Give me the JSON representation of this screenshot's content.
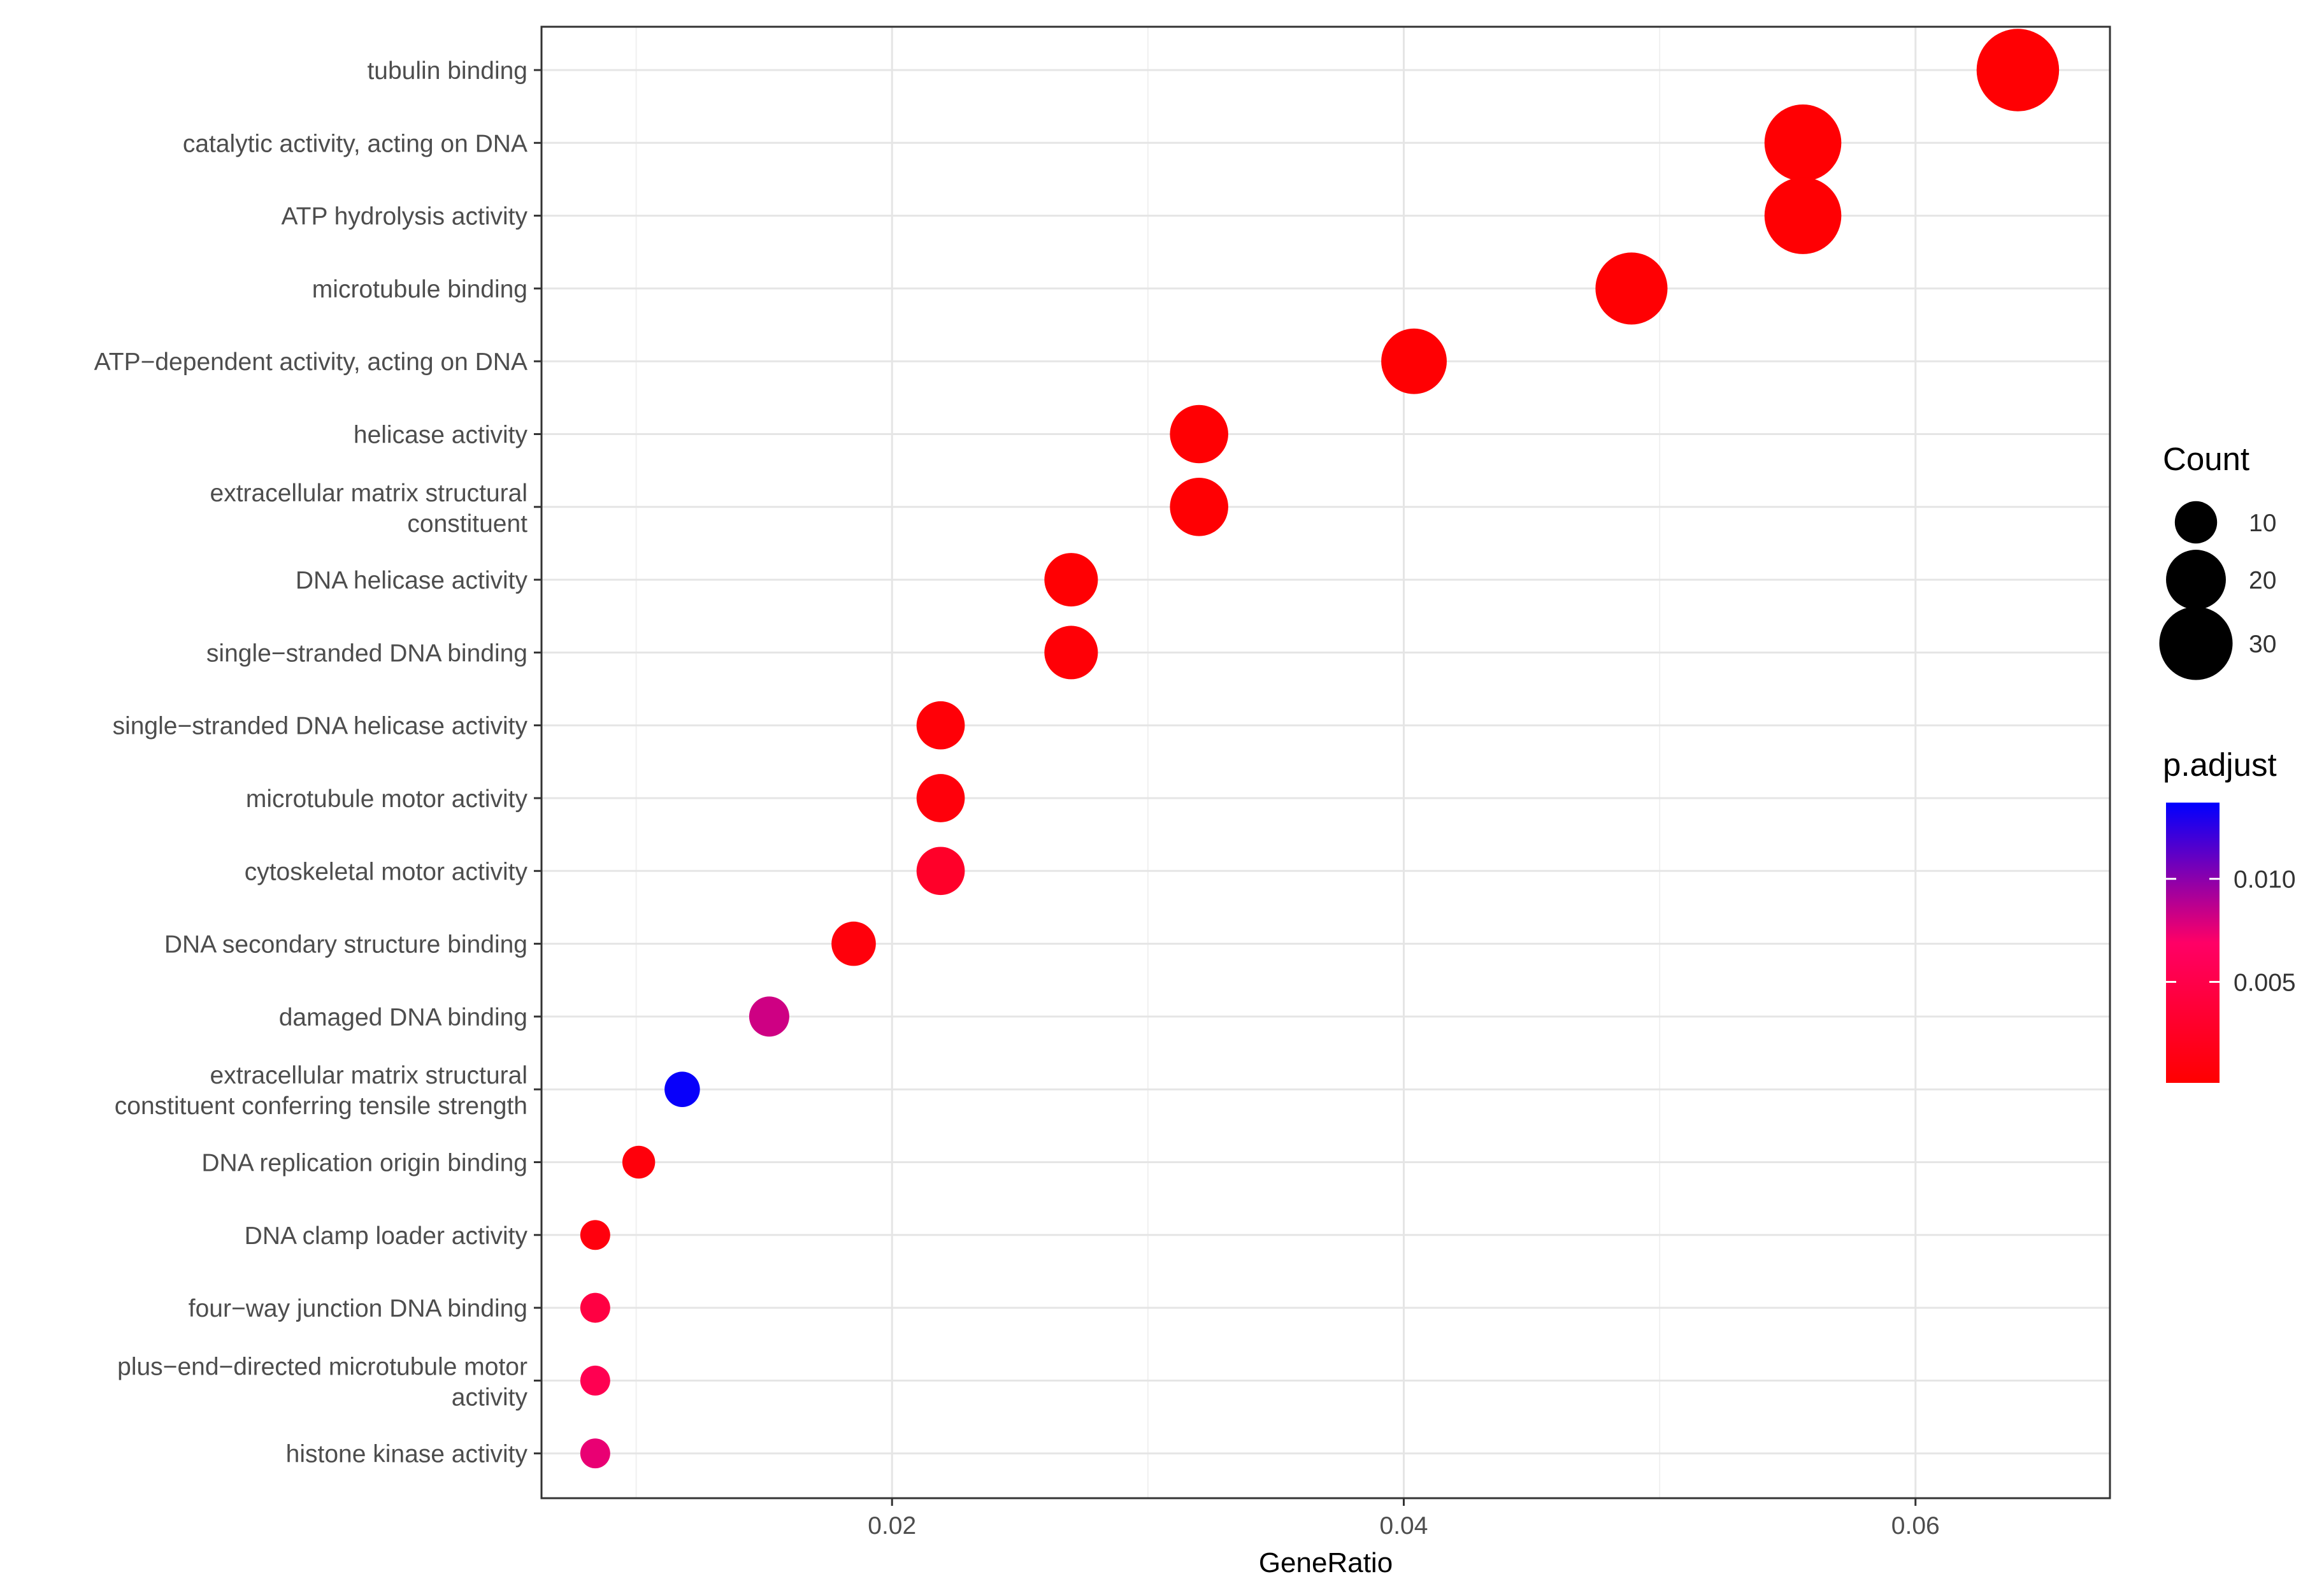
{
  "chart_data": {
    "type": "scatter",
    "title": "",
    "xlabel": "GeneRatio",
    "ylabel": "",
    "xlim": [
      0.0063,
      0.0676
    ],
    "x_ticks": [
      0.02,
      0.04,
      0.06
    ],
    "x_tick_labels": [
      "0.02",
      "0.04",
      "0.06"
    ],
    "grid": true,
    "points": [
      {
        "term": "tubulin binding",
        "x": 0.064,
        "count": 38,
        "p_adjust": 0.0003
      },
      {
        "term": "catalytic activity, acting on DNA",
        "x": 0.0556,
        "count": 33,
        "p_adjust": 0.0003
      },
      {
        "term": "ATP hydrolysis activity",
        "x": 0.0556,
        "count": 33,
        "p_adjust": 0.0003
      },
      {
        "term": "microtubule binding",
        "x": 0.0489,
        "count": 29,
        "p_adjust": 0.0003
      },
      {
        "term": "ATP−dependent activity, acting on DNA",
        "x": 0.0404,
        "count": 24,
        "p_adjust": 0.0003
      },
      {
        "term": "helicase activity",
        "x": 0.032,
        "count": 19,
        "p_adjust": 0.0003
      },
      {
        "term": "extracellular matrix structural constituent",
        "lines": [
          "extracellular matrix structural",
          "constituent"
        ],
        "x": 0.032,
        "count": 19,
        "p_adjust": 0.0003
      },
      {
        "term": "DNA helicase activity",
        "x": 0.027,
        "count": 16,
        "p_adjust": 0.0003
      },
      {
        "term": "single−stranded DNA binding",
        "x": 0.027,
        "count": 16,
        "p_adjust": 0.0005
      },
      {
        "term": "single−stranded DNA helicase activity",
        "x": 0.0219,
        "count": 13,
        "p_adjust": 0.0006
      },
      {
        "term": "microtubule motor activity",
        "x": 0.0219,
        "count": 13,
        "p_adjust": 0.0008
      },
      {
        "term": "cytoskeletal motor activity",
        "x": 0.0219,
        "count": 13,
        "p_adjust": 0.0028
      },
      {
        "term": "DNA secondary structure binding",
        "x": 0.0185,
        "count": 11,
        "p_adjust": 0.0008
      },
      {
        "term": "damaged DNA binding",
        "x": 0.0152,
        "count": 9,
        "p_adjust": 0.0082
      },
      {
        "term": "extracellular matrix structural constituent conferring tensile strength",
        "lines": [
          "extracellular matrix structural",
          "constituent conferring tensile strength"
        ],
        "x": 0.0118,
        "count": 7,
        "p_adjust": 0.0135
      },
      {
        "term": "DNA replication origin binding",
        "x": 0.0101,
        "count": 6,
        "p_adjust": 0.0008
      },
      {
        "term": "DNA clamp loader activity",
        "x": 0.0084,
        "count": 5,
        "p_adjust": 0.001
      },
      {
        "term": "four−way junction DNA binding",
        "x": 0.0084,
        "count": 5,
        "p_adjust": 0.0045
      },
      {
        "term": "plus−end−directed microtubule motor activity",
        "lines": [
          "plus−end−directed microtubule motor",
          "activity"
        ],
        "x": 0.0084,
        "count": 5,
        "p_adjust": 0.0055
      },
      {
        "term": "histone kinase activity",
        "x": 0.0084,
        "count": 5,
        "p_adjust": 0.0075
      }
    ],
    "size_legend": {
      "title": "Count",
      "entries": [
        {
          "label": "10",
          "value": 10
        },
        {
          "label": "20",
          "value": 20
        },
        {
          "label": "30",
          "value": 30
        }
      ]
    },
    "color_legend": {
      "title": "p.adjust",
      "range": [
        0.0001,
        0.0137
      ],
      "ticks": [
        {
          "label": "0.005",
          "value": 0.005
        },
        {
          "label": "0.010",
          "value": 0.01
        }
      ],
      "low_color": "#ff0000",
      "high_color": "#0000ff"
    },
    "legend_placement": "right"
  }
}
